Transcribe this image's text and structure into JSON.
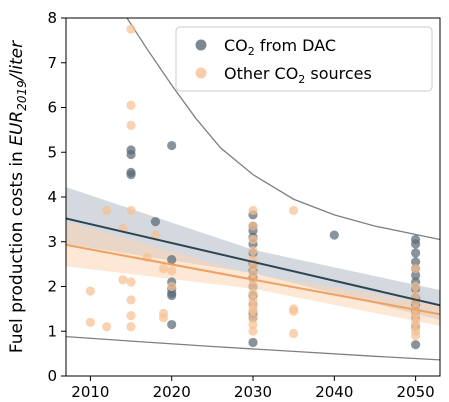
{
  "chart_data": {
    "type": "scatter",
    "title": "",
    "xlabel": "",
    "ylabel": "Fuel production costs in EUR2019/liter",
    "ylabel_parts": {
      "pre": "Fuel production costs in ",
      "italic": "EUR",
      "sub": "2019",
      "post": "/liter"
    },
    "xlim": [
      2007,
      2053
    ],
    "ylim": [
      0,
      8
    ],
    "xticks": [
      2010,
      2020,
      2030,
      2040,
      2050
    ],
    "yticks": [
      0,
      1,
      2,
      3,
      4,
      5,
      6,
      7,
      8
    ],
    "grid": false,
    "legend_position": "top-right",
    "series": [
      {
        "name": "CO2 from DAC",
        "name_parts": {
          "pre": "CO",
          "sub": "2",
          "post": " from DAC"
        },
        "color": "#5a6a76",
        "points": [
          [
            2015,
            5.05
          ],
          [
            2015,
            4.95
          ],
          [
            2015,
            4.55
          ],
          [
            2015,
            4.5
          ],
          [
            2018,
            3.45
          ],
          [
            2020,
            5.15
          ],
          [
            2020,
            2.6
          ],
          [
            2020,
            2.1
          ],
          [
            2020,
            1.95
          ],
          [
            2020,
            1.85
          ],
          [
            2020,
            1.8
          ],
          [
            2020,
            1.15
          ],
          [
            2030,
            3.6
          ],
          [
            2030,
            3.35
          ],
          [
            2030,
            3.25
          ],
          [
            2030,
            3.1
          ],
          [
            2030,
            2.95
          ],
          [
            2030,
            2.75
          ],
          [
            2030,
            2.5
          ],
          [
            2030,
            2.35
          ],
          [
            2030,
            2.2
          ],
          [
            2030,
            2.0
          ],
          [
            2030,
            1.8
          ],
          [
            2030,
            1.6
          ],
          [
            2030,
            1.4
          ],
          [
            2030,
            1.3
          ],
          [
            2030,
            0.75
          ],
          [
            2040,
            3.15
          ],
          [
            2050,
            3.05
          ],
          [
            2050,
            2.95
          ],
          [
            2050,
            2.75
          ],
          [
            2050,
            2.55
          ],
          [
            2050,
            2.4
          ],
          [
            2050,
            2.25
          ],
          [
            2050,
            2.1
          ],
          [
            2050,
            1.95
          ],
          [
            2050,
            1.75
          ],
          [
            2050,
            1.6
          ],
          [
            2050,
            1.45
          ],
          [
            2050,
            1.3
          ],
          [
            2050,
            1.1
          ],
          [
            2050,
            0.7
          ]
        ]
      },
      {
        "name": "Other CO2 sources",
        "name_parts": {
          "pre": "Other CO",
          "sub": "2",
          "post": " sources"
        },
        "color": "#f7c093",
        "points": [
          [
            2010,
            1.9
          ],
          [
            2010,
            1.2
          ],
          [
            2012,
            3.7
          ],
          [
            2012,
            1.1
          ],
          [
            2014,
            3.3
          ],
          [
            2014,
            2.15
          ],
          [
            2015,
            7.75
          ],
          [
            2015,
            6.05
          ],
          [
            2015,
            5.6
          ],
          [
            2015,
            3.7
          ],
          [
            2015,
            2.1
          ],
          [
            2015,
            1.7
          ],
          [
            2015,
            1.35
          ],
          [
            2015,
            1.1
          ],
          [
            2017,
            2.65
          ],
          [
            2018,
            3.15
          ],
          [
            2019,
            2.4
          ],
          [
            2019,
            1.4
          ],
          [
            2019,
            1.3
          ],
          [
            2020,
            2.35
          ],
          [
            2020,
            2.0
          ],
          [
            2030,
            3.7
          ],
          [
            2030,
            3.35
          ],
          [
            2030,
            3.05
          ],
          [
            2030,
            2.8
          ],
          [
            2030,
            2.6
          ],
          [
            2030,
            2.45
          ],
          [
            2030,
            2.3
          ],
          [
            2030,
            2.15
          ],
          [
            2030,
            2.0
          ],
          [
            2030,
            1.85
          ],
          [
            2030,
            1.7
          ],
          [
            2030,
            1.6
          ],
          [
            2030,
            1.5
          ],
          [
            2030,
            1.45
          ],
          [
            2030,
            1.3
          ],
          [
            2030,
            1.15
          ],
          [
            2030,
            1.0
          ],
          [
            2035,
            3.7
          ],
          [
            2035,
            1.5
          ],
          [
            2035,
            1.45
          ],
          [
            2035,
            0.95
          ],
          [
            2050,
            2.4
          ],
          [
            2050,
            2.0
          ],
          [
            2050,
            1.8
          ],
          [
            2050,
            1.65
          ],
          [
            2050,
            1.5
          ],
          [
            2050,
            1.4
          ],
          [
            2050,
            1.3
          ],
          [
            2050,
            1.2
          ],
          [
            2050,
            1.1
          ],
          [
            2050,
            1.0
          ],
          [
            2050,
            0.9
          ]
        ]
      }
    ],
    "regression_lines": [
      {
        "series": "CO2 from DAC",
        "color": "#2e4452",
        "from": [
          2007,
          3.52
        ],
        "to": [
          2053,
          1.58
        ],
        "band_upper": [
          [
            2007,
            4.22
          ],
          [
            2030,
            2.82
          ],
          [
            2053,
            1.92
          ]
        ],
        "band_lower": [
          [
            2007,
            2.95
          ],
          [
            2030,
            2.3
          ],
          [
            2053,
            1.25
          ]
        ],
        "band_color": "#aeb9c2"
      },
      {
        "series": "Other CO2 sources",
        "color": "#f0a060",
        "from": [
          2007,
          2.93
        ],
        "to": [
          2053,
          1.38
        ],
        "band_upper": [
          [
            2007,
            3.45
          ],
          [
            2030,
            2.28
          ],
          [
            2053,
            1.58
          ]
        ],
        "band_lower": [
          [
            2007,
            2.45
          ],
          [
            2030,
            1.95
          ],
          [
            2053,
            1.12
          ]
        ],
        "band_color": "#fbd3b3"
      }
    ],
    "bound_curves": {
      "color": "#7f7f7f",
      "upper": [
        [
          2014.5,
          8.0
        ],
        [
          2017,
          7.3
        ],
        [
          2020,
          6.5
        ],
        [
          2023,
          5.75
        ],
        [
          2026,
          5.1
        ],
        [
          2030,
          4.5
        ],
        [
          2035,
          3.95
        ],
        [
          2040,
          3.6
        ],
        [
          2045,
          3.35
        ],
        [
          2053,
          3.05
        ]
      ],
      "lower": [
        [
          2007,
          0.88
        ],
        [
          2015,
          0.78
        ],
        [
          2025,
          0.66
        ],
        [
          2035,
          0.55
        ],
        [
          2045,
          0.44
        ],
        [
          2053,
          0.36
        ]
      ]
    }
  }
}
